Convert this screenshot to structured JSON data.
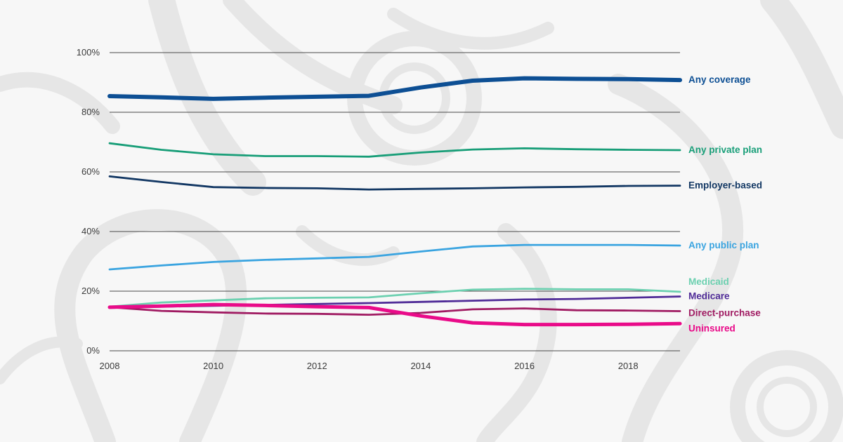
{
  "chart_data": {
    "type": "line",
    "title": "",
    "xlabel": "",
    "ylabel": "",
    "xlim": [
      2008,
      2019
    ],
    "ylim": [
      0,
      100
    ],
    "grid": true,
    "legend_placement": "right, inline at line ends",
    "x_ticks": [
      "2008",
      "2010",
      "2012",
      "2014",
      "2016",
      "2018"
    ],
    "y_ticks": [
      "0%",
      "20%",
      "40%",
      "60%",
      "80%",
      "100%"
    ],
    "x": [
      2008,
      2009,
      2010,
      2011,
      2012,
      2013,
      2014,
      2015,
      2016,
      2017,
      2018,
      2019
    ],
    "series": [
      {
        "name": "Any coverage",
        "color": "#0d4f94",
        "width": 6,
        "values": [
          85.4,
          85.0,
          84.5,
          84.9,
          85.2,
          85.5,
          88.3,
          90.6,
          91.4,
          91.2,
          91.1,
          90.8
        ]
      },
      {
        "name": "Any private plan",
        "color": "#189e78",
        "width": 2.8,
        "values": [
          69.6,
          67.4,
          65.9,
          65.3,
          65.3,
          65.1,
          66.5,
          67.5,
          67.9,
          67.6,
          67.4,
          67.3
        ]
      },
      {
        "name": "Employer-based",
        "color": "#123763",
        "width": 2.8,
        "values": [
          58.5,
          56.6,
          54.9,
          54.6,
          54.5,
          54.1,
          54.3,
          54.5,
          54.8,
          55.0,
          55.3,
          55.4
        ]
      },
      {
        "name": "Any public plan",
        "color": "#3aa4e0",
        "width": 2.8,
        "values": [
          27.3,
          28.6,
          29.8,
          30.5,
          31.0,
          31.5,
          33.3,
          35.0,
          35.5,
          35.5,
          35.5,
          35.3
        ]
      },
      {
        "name": "Medicaid",
        "color": "#6cd0b0",
        "width": 2.8,
        "values": [
          14.8,
          16.2,
          16.9,
          17.6,
          17.8,
          17.9,
          19.3,
          20.5,
          20.8,
          20.6,
          20.6,
          19.8
        ]
      },
      {
        "name": "Medicare",
        "color": "#4f2b97",
        "width": 2.8,
        "values": [
          14.4,
          14.8,
          15.1,
          15.4,
          15.7,
          16.0,
          16.4,
          16.8,
          17.2,
          17.4,
          17.8,
          18.2
        ]
      },
      {
        "name": "Direct-purchase",
        "color": "#a01b62",
        "width": 2.8,
        "values": [
          14.6,
          13.4,
          12.9,
          12.5,
          12.4,
          12.1,
          12.7,
          13.9,
          14.2,
          13.6,
          13.5,
          13.3
        ]
      },
      {
        "name": "Uninsured",
        "color": "#e90b89",
        "width": 5,
        "values": [
          14.6,
          15.0,
          15.5,
          15.2,
          14.8,
          14.5,
          11.7,
          9.4,
          8.8,
          8.8,
          8.9,
          9.1
        ]
      }
    ]
  }
}
